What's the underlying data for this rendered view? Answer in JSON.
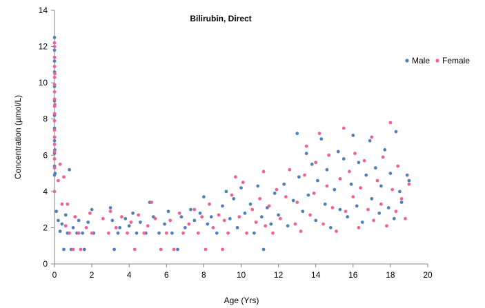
{
  "chart_data": {
    "type": "scatter",
    "title": "Bilirubin, Direct",
    "xlabel": "Age (Yrs)",
    "ylabel": "Concentration (µmol/L)",
    "xlim": [
      0,
      20
    ],
    "ylim": [
      0,
      14
    ],
    "x_ticks": [
      0,
      2,
      4,
      6,
      8,
      10,
      12,
      14,
      16,
      18,
      20
    ],
    "y_ticks": [
      0,
      2,
      4,
      6,
      8,
      10,
      12,
      14
    ],
    "grid": false,
    "legend_position": "top-right",
    "series": [
      {
        "name": "Male",
        "color": "#4f81bd",
        "points": [
          [
            0.0,
            12.5
          ],
          [
            0.0,
            11.8
          ],
          [
            0.0,
            11.2
          ],
          [
            0.0,
            10.6
          ],
          [
            0.0,
            9.8
          ],
          [
            0.0,
            9.0
          ],
          [
            0.0,
            8.2
          ],
          [
            0.0,
            7.5
          ],
          [
            0.0,
            6.8
          ],
          [
            0.0,
            6.1
          ],
          [
            0.0,
            5.4
          ],
          [
            0.0,
            4.9
          ],
          [
            0.02,
            6.3
          ],
          [
            0.03,
            5.0
          ],
          [
            0.1,
            2.9
          ],
          [
            0.2,
            2.4
          ],
          [
            0.3,
            1.8
          ],
          [
            0.4,
            2.2
          ],
          [
            0.5,
            0.8
          ],
          [
            0.6,
            2.7
          ],
          [
            0.7,
            1.7
          ],
          [
            0.8,
            5.2
          ],
          [
            0.9,
            0.8
          ],
          [
            1.0,
            2.0
          ],
          [
            1.2,
            1.7
          ],
          [
            1.3,
            2.4
          ],
          [
            1.5,
            1.7
          ],
          [
            1.6,
            0.8
          ],
          [
            1.8,
            2.3
          ],
          [
            2.0,
            3.0
          ],
          [
            2.1,
            1.7
          ],
          [
            3.0,
            3.1
          ],
          [
            3.1,
            2.4
          ],
          [
            3.2,
            0.8
          ],
          [
            3.4,
            1.7
          ],
          [
            3.5,
            2.0
          ],
          [
            3.8,
            2.5
          ],
          [
            4.0,
            2.1
          ],
          [
            4.2,
            2.8
          ],
          [
            4.4,
            1.7
          ],
          [
            4.6,
            2.3
          ],
          [
            4.9,
            1.7
          ],
          [
            5.1,
            3.4
          ],
          [
            5.3,
            2.6
          ],
          [
            5.6,
            1.7
          ],
          [
            5.9,
            2.2
          ],
          [
            6.1,
            2.9
          ],
          [
            6.3,
            1.7
          ],
          [
            6.6,
            0.8
          ],
          [
            6.8,
            2.6
          ],
          [
            7.0,
            2.0
          ],
          [
            7.3,
            3.0
          ],
          [
            7.5,
            2.4
          ],
          [
            7.8,
            2.8
          ],
          [
            8.0,
            3.7
          ],
          [
            8.2,
            2.2
          ],
          [
            8.4,
            2.6
          ],
          [
            8.7,
            1.7
          ],
          [
            9.0,
            3.2
          ],
          [
            9.2,
            4.0
          ],
          [
            9.4,
            2.5
          ],
          [
            9.6,
            3.6
          ],
          [
            9.8,
            2.0
          ],
          [
            10.0,
            4.2
          ],
          [
            10.2,
            2.8
          ],
          [
            10.5,
            3.3
          ],
          [
            10.7,
            1.7
          ],
          [
            10.9,
            4.3
          ],
          [
            11.1,
            2.6
          ],
          [
            11.2,
            0.8
          ],
          [
            11.4,
            3.1
          ],
          [
            11.6,
            2.2
          ],
          [
            11.8,
            3.9
          ],
          [
            12.0,
            2.7
          ],
          [
            12.3,
            4.4
          ],
          [
            12.5,
            2.1
          ],
          [
            12.8,
            3.5
          ],
          [
            13.0,
            7.2
          ],
          [
            13.1,
            4.8
          ],
          [
            13.3,
            2.9
          ],
          [
            13.5,
            6.1
          ],
          [
            13.6,
            3.8
          ],
          [
            13.8,
            5.5
          ],
          [
            14.0,
            2.4
          ],
          [
            14.1,
            4.6
          ],
          [
            14.3,
            6.9
          ],
          [
            14.5,
            3.3
          ],
          [
            14.6,
            5.2
          ],
          [
            14.8,
            2.0
          ],
          [
            15.0,
            4.1
          ],
          [
            15.2,
            6.2
          ],
          [
            15.3,
            3.0
          ],
          [
            15.5,
            5.8
          ],
          [
            15.7,
            2.6
          ],
          [
            15.9,
            4.4
          ],
          [
            16.0,
            7.1
          ],
          [
            16.2,
            3.2
          ],
          [
            16.3,
            5.6
          ],
          [
            16.5,
            2.3
          ],
          [
            16.7,
            4.9
          ],
          [
            16.9,
            6.8
          ],
          [
            17.0,
            3.6
          ],
          [
            17.2,
            5.3
          ],
          [
            17.4,
            2.8
          ],
          [
            17.5,
            4.3
          ],
          [
            17.7,
            6.3
          ],
          [
            17.9,
            3.1
          ],
          [
            18.0,
            5.0
          ],
          [
            18.2,
            2.5
          ],
          [
            18.3,
            7.3
          ],
          [
            18.5,
            4.0
          ],
          [
            18.6,
            3.4
          ],
          [
            18.9,
            4.9
          ],
          [
            19.0,
            4.6
          ]
        ]
      },
      {
        "name": "Female",
        "color": "#f06292",
        "points": [
          [
            0.0,
            12.2
          ],
          [
            0.0,
            12.0
          ],
          [
            0.0,
            11.4
          ],
          [
            0.0,
            10.9
          ],
          [
            0.0,
            10.3
          ],
          [
            0.0,
            9.9
          ],
          [
            0.0,
            9.5
          ],
          [
            0.0,
            9.1
          ],
          [
            0.0,
            8.7
          ],
          [
            0.0,
            8.3
          ],
          [
            0.0,
            7.9
          ],
          [
            0.0,
            7.4
          ],
          [
            0.0,
            7.0
          ],
          [
            0.0,
            6.6
          ],
          [
            0.0,
            6.2
          ],
          [
            0.0,
            5.8
          ],
          [
            0.0,
            5.3
          ],
          [
            0.0,
            4.0
          ],
          [
            0.02,
            10.5
          ],
          [
            0.02,
            8.8
          ],
          [
            0.2,
            4.6
          ],
          [
            0.3,
            5.5
          ],
          [
            0.4,
            3.3
          ],
          [
            0.5,
            4.8
          ],
          [
            0.6,
            2.1
          ],
          [
            0.7,
            3.3
          ],
          [
            0.8,
            1.7
          ],
          [
            1.0,
            0.8
          ],
          [
            1.1,
            2.6
          ],
          [
            1.3,
            1.7
          ],
          [
            1.4,
            0.8
          ],
          [
            1.7,
            2.0
          ],
          [
            1.9,
            2.8
          ],
          [
            2.0,
            1.7
          ],
          [
            2.6,
            2.5
          ],
          [
            2.9,
            1.7
          ],
          [
            3.0,
            2.9
          ],
          [
            3.3,
            2.0
          ],
          [
            3.6,
            2.6
          ],
          [
            3.9,
            1.7
          ],
          [
            4.1,
            2.3
          ],
          [
            4.3,
            0.8
          ],
          [
            4.5,
            2.7
          ],
          [
            4.8,
            1.7
          ],
          [
            5.0,
            2.1
          ],
          [
            5.2,
            3.4
          ],
          [
            5.4,
            2.5
          ],
          [
            5.7,
            0.8
          ],
          [
            6.0,
            1.7
          ],
          [
            6.2,
            2.4
          ],
          [
            6.4,
            0.8
          ],
          [
            6.7,
            2.8
          ],
          [
            6.9,
            1.7
          ],
          [
            7.2,
            2.2
          ],
          [
            7.5,
            3.0
          ],
          [
            7.7,
            1.7
          ],
          [
            7.9,
            2.6
          ],
          [
            8.1,
            0.8
          ],
          [
            8.3,
            3.3
          ],
          [
            8.5,
            2.0
          ],
          [
            8.8,
            2.7
          ],
          [
            9.0,
            0.8
          ],
          [
            9.1,
            2.4
          ],
          [
            9.3,
            1.7
          ],
          [
            9.5,
            3.8
          ],
          [
            9.7,
            4.8
          ],
          [
            9.9,
            2.6
          ],
          [
            10.1,
            4.5
          ],
          [
            10.3,
            1.7
          ],
          [
            10.6,
            3.0
          ],
          [
            10.8,
            2.3
          ],
          [
            11.0,
            3.6
          ],
          [
            11.2,
            5.1
          ],
          [
            11.3,
            2.1
          ],
          [
            11.5,
            3.2
          ],
          [
            11.7,
            1.7
          ],
          [
            11.9,
            4.1
          ],
          [
            12.1,
            2.5
          ],
          [
            12.4,
            3.7
          ],
          [
            12.6,
            5.2
          ],
          [
            12.9,
            2.2
          ],
          [
            13.0,
            3.4
          ],
          [
            13.2,
            1.8
          ],
          [
            13.4,
            4.9
          ],
          [
            13.5,
            6.5
          ],
          [
            13.7,
            2.7
          ],
          [
            13.9,
            3.9
          ],
          [
            14.0,
            5.6
          ],
          [
            14.2,
            7.2
          ],
          [
            14.4,
            2.2
          ],
          [
            14.6,
            4.3
          ],
          [
            14.7,
            6.0
          ],
          [
            14.9,
            3.1
          ],
          [
            15.1,
            1.8
          ],
          [
            15.3,
            4.7
          ],
          [
            15.5,
            7.5
          ],
          [
            15.6,
            2.9
          ],
          [
            15.8,
            5.1
          ],
          [
            16.0,
            3.7
          ],
          [
            16.1,
            6.1
          ],
          [
            16.3,
            2.0
          ],
          [
            16.4,
            4.2
          ],
          [
            16.6,
            5.7
          ],
          [
            16.8,
            3.0
          ],
          [
            17.0,
            7.0
          ],
          [
            17.1,
            2.4
          ],
          [
            17.3,
            4.6
          ],
          [
            17.5,
            3.3
          ],
          [
            17.6,
            5.9
          ],
          [
            17.8,
            2.1
          ],
          [
            18.0,
            7.8
          ],
          [
            18.1,
            4.1
          ],
          [
            18.3,
            2.9
          ],
          [
            18.4,
            5.4
          ],
          [
            18.6,
            3.6
          ],
          [
            18.8,
            2.5
          ],
          [
            19.0,
            4.4
          ]
        ]
      }
    ]
  }
}
